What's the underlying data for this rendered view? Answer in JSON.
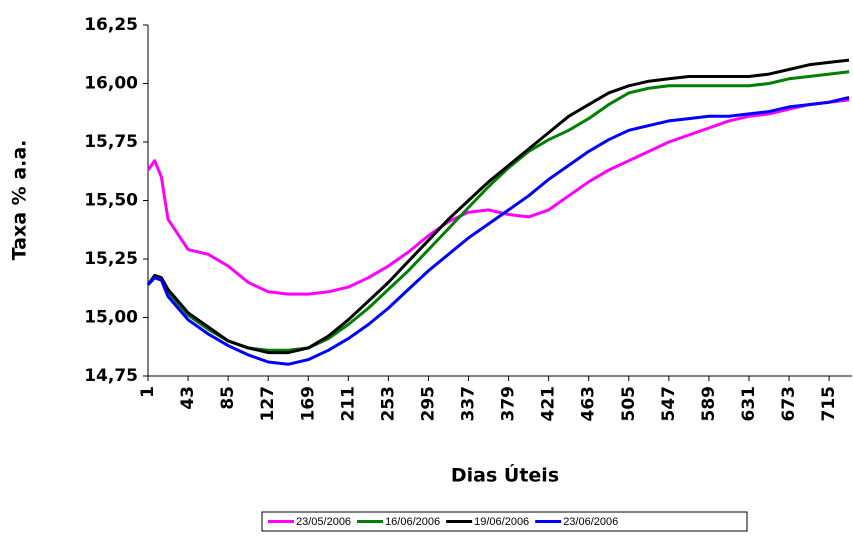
{
  "chart_data": {
    "type": "line",
    "x_label": "Dias Úteis",
    "y_label": "Taxa % a.a.",
    "x": [
      1,
      8,
      15,
      22,
      43,
      64,
      85,
      106,
      127,
      148,
      169,
      190,
      211,
      232,
      253,
      274,
      295,
      316,
      337,
      358,
      379,
      400,
      421,
      442,
      463,
      484,
      505,
      526,
      547,
      568,
      589,
      610,
      631,
      652,
      673,
      694,
      715,
      736
    ],
    "series": [
      {
        "name": "23/05/2006",
        "color": "#ff00ff",
        "values": [
          15.63,
          15.67,
          15.6,
          15.42,
          15.29,
          15.27,
          15.22,
          15.15,
          15.11,
          15.1,
          15.1,
          15.11,
          15.13,
          15.17,
          15.22,
          15.28,
          15.35,
          15.41,
          15.45,
          15.46,
          15.44,
          15.43,
          15.46,
          15.52,
          15.58,
          15.63,
          15.67,
          15.71,
          15.75,
          15.78,
          15.81,
          15.84,
          15.86,
          15.87,
          15.89,
          15.91,
          15.92,
          15.93
        ]
      },
      {
        "name": "16/06/2006",
        "color": "#008000",
        "values": [
          15.14,
          15.17,
          15.16,
          15.11,
          15.01,
          14.95,
          14.9,
          14.87,
          14.86,
          14.86,
          14.87,
          14.91,
          14.97,
          15.04,
          15.12,
          15.2,
          15.29,
          15.38,
          15.47,
          15.56,
          15.64,
          15.71,
          15.76,
          15.8,
          15.85,
          15.91,
          15.96,
          15.98,
          15.99,
          15.99,
          15.99,
          15.99,
          15.99,
          16.0,
          16.02,
          16.03,
          16.04,
          16.05
        ]
      },
      {
        "name": "19/06/2006",
        "color": "#000000",
        "values": [
          15.14,
          15.18,
          15.17,
          15.12,
          15.02,
          14.96,
          14.9,
          14.87,
          14.85,
          14.85,
          14.87,
          14.92,
          14.99,
          15.07,
          15.15,
          15.24,
          15.33,
          15.42,
          15.5,
          15.58,
          15.65,
          15.72,
          15.79,
          15.86,
          15.91,
          15.96,
          15.99,
          16.01,
          16.02,
          16.03,
          16.03,
          16.03,
          16.03,
          16.04,
          16.06,
          16.08,
          16.09,
          16.1
        ]
      },
      {
        "name": "23/06/2006",
        "color": "#0000ff",
        "values": [
          15.14,
          15.17,
          15.16,
          15.09,
          14.99,
          14.93,
          14.88,
          14.84,
          14.81,
          14.8,
          14.82,
          14.86,
          14.91,
          14.97,
          15.04,
          15.12,
          15.2,
          15.27,
          15.34,
          15.4,
          15.46,
          15.52,
          15.59,
          15.65,
          15.71,
          15.76,
          15.8,
          15.82,
          15.84,
          15.85,
          15.86,
          15.86,
          15.87,
          15.88,
          15.9,
          15.91,
          15.92,
          15.94
        ]
      }
    ],
    "xlim": [
      1,
      739
    ],
    "xticks": [
      1,
      43,
      85,
      127,
      169,
      211,
      253,
      295,
      337,
      379,
      421,
      463,
      505,
      547,
      589,
      631,
      673,
      715
    ],
    "ylim": [
      14.75,
      16.25
    ],
    "yticks": [
      {
        "value": 14.75,
        "label": "14,75"
      },
      {
        "value": 15.0,
        "label": "15,00"
      },
      {
        "value": 15.25,
        "label": "15,25"
      },
      {
        "value": 15.5,
        "label": "15,50"
      },
      {
        "value": 15.75,
        "label": "15,75"
      },
      {
        "value": 16.0,
        "label": "16,00"
      },
      {
        "value": 16.25,
        "label": "16,25"
      }
    ],
    "legend": "bottom"
  }
}
